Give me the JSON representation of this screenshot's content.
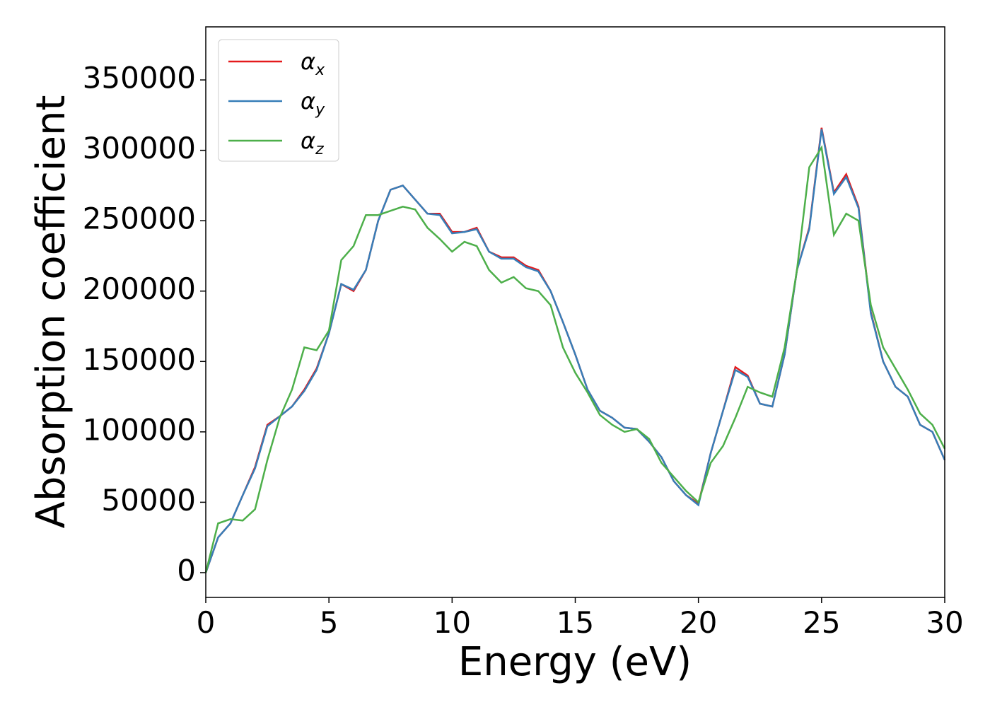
{
  "chart_data": {
    "type": "line",
    "xlabel": "Energy (eV)",
    "ylabel": "Absorption coefficient",
    "x": [
      0,
      0.5,
      1,
      1.5,
      2,
      2.5,
      3,
      3.5,
      4,
      4.5,
      5,
      5.5,
      6,
      6.5,
      7,
      7.5,
      8,
      8.5,
      9,
      9.5,
      10,
      10.5,
      11,
      11.5,
      12,
      12.5,
      13,
      13.5,
      14,
      14.5,
      15,
      15.5,
      16,
      16.5,
      17,
      17.5,
      18,
      18.5,
      19,
      19.5,
      20,
      20.5,
      21,
      21.5,
      22,
      22.5,
      23,
      23.5,
      24,
      24.5,
      25,
      25.5,
      26,
      26.5,
      27,
      27.5,
      28,
      28.5,
      29,
      29.5,
      30
    ],
    "series": [
      {
        "name": "αx",
        "color": "#e41a1c",
        "values": [
          0,
          25000,
          35000,
          55000,
          75000,
          105000,
          111000,
          118000,
          130000,
          145000,
          170000,
          205000,
          200000,
          215000,
          250000,
          272000,
          275000,
          265000,
          255000,
          255000,
          242000,
          242000,
          245000,
          228000,
          224000,
          224000,
          218000,
          215000,
          200000,
          178000,
          155000,
          130000,
          115000,
          110000,
          103000,
          102000,
          93000,
          82000,
          65000,
          55000,
          49000,
          85000,
          115000,
          146000,
          140000,
          120000,
          118000,
          155000,
          215000,
          245000,
          316000,
          270000,
          283000,
          260000,
          185000,
          150000,
          132000,
          125000,
          105000,
          100000,
          80000
        ]
      },
      {
        "name": "αy",
        "color": "#377eb8",
        "values": [
          0,
          25000,
          35000,
          55000,
          74000,
          104000,
          111000,
          118000,
          129000,
          144000,
          170000,
          205000,
          201000,
          215000,
          250000,
          272000,
          275000,
          265000,
          255000,
          254000,
          241000,
          242000,
          244000,
          228000,
          223000,
          223000,
          217000,
          214000,
          200000,
          178000,
          155000,
          130000,
          115000,
          110000,
          103000,
          102000,
          93000,
          82000,
          65000,
          55000,
          48000,
          85000,
          115000,
          144000,
          139000,
          120000,
          118000,
          155000,
          215000,
          244000,
          315000,
          269000,
          281000,
          259000,
          184000,
          150000,
          132000,
          125000,
          105000,
          100000,
          80000
        ]
      },
      {
        "name": "αz",
        "color": "#4daf4a",
        "values": [
          0,
          35000,
          38000,
          37000,
          45000,
          80000,
          110000,
          130000,
          160000,
          158000,
          172000,
          222000,
          232000,
          254000,
          254000,
          257000,
          260000,
          258000,
          245000,
          237000,
          228000,
          235000,
          232000,
          215000,
          206000,
          210000,
          202000,
          200000,
          190000,
          160000,
          142000,
          128000,
          112000,
          105000,
          100000,
          102000,
          95000,
          78000,
          68000,
          58000,
          50000,
          78000,
          90000,
          110000,
          132000,
          128000,
          125000,
          160000,
          215000,
          288000,
          302000,
          240000,
          255000,
          250000,
          190000,
          160000,
          145000,
          130000,
          113000,
          105000,
          88000
        ]
      }
    ],
    "xlim": [
      0,
      30
    ],
    "xticks": [
      0,
      5,
      10,
      15,
      20,
      25,
      30
    ],
    "ylim": [
      -17600,
      387700
    ],
    "yticks": [
      0,
      50000,
      100000,
      150000,
      200000,
      250000,
      300000,
      350000
    ],
    "legend": "upper left"
  }
}
